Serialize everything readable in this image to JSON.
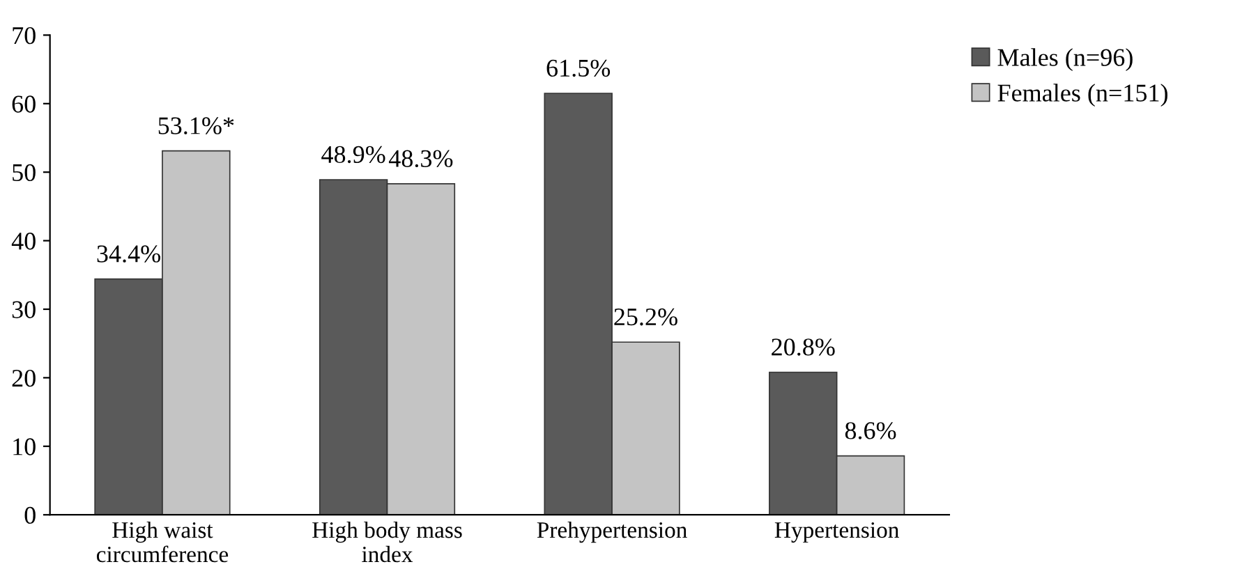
{
  "chart_data": {
    "type": "bar",
    "categories": [
      "High waist\ncircumference",
      "High body mass\nindex",
      "Prehypertension",
      "Hypertension"
    ],
    "series": [
      {
        "name": "Males (n=96)",
        "color": "#5a5a5a",
        "values": [
          34.4,
          48.9,
          61.5,
          20.8
        ],
        "value_labels": [
          "34.4%",
          "48.9%",
          "61.5%",
          "20.8%"
        ]
      },
      {
        "name": "Females (n=151)",
        "color": "#c4c4c4",
        "values": [
          53.1,
          48.3,
          25.2,
          8.6
        ],
        "value_labels": [
          "53.1%*",
          "48.3%",
          "25.2%",
          "8.6%"
        ]
      }
    ],
    "ylim": [
      0,
      70
    ],
    "yticks": [
      0,
      10,
      20,
      30,
      40,
      50,
      60,
      70
    ],
    "grid": false,
    "legend": "top right"
  }
}
